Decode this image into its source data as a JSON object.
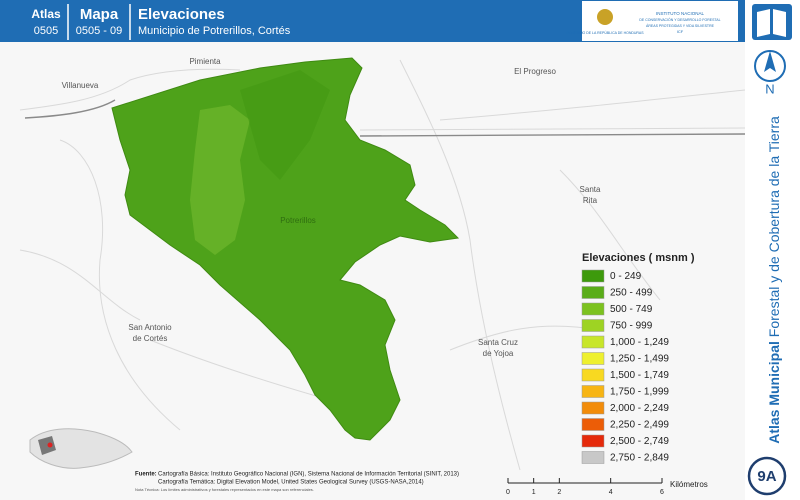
{
  "header": {
    "atlas_label": "Atlas",
    "atlas_code": "0505",
    "map_label": "Mapa",
    "map_code": "0505 - 09",
    "title": "Elevaciones",
    "subtitle": "Municipio de Potrerillos, Cortés",
    "logo_left": "GOBIERNO DE LA REPÚBLICA DE HONDURAS",
    "logo_right": [
      "INSTITUTO NACIONAL",
      "DE CONSERVACIÓN Y DESARROLLO FORESTAL",
      "ÁREAS PROTEGIDAS Y VIDA SILVESTRE",
      "ICF"
    ]
  },
  "places": {
    "pimienta": "Pimienta",
    "villanueva": "Villanueva",
    "el_progreso": "El Progreso",
    "santa_rita": [
      "Santa",
      "Rita"
    ],
    "potrerillos": "Potrerillos",
    "san_antonio": [
      "San Antonio",
      "de Cortés"
    ],
    "santa_cruz": [
      "Santa Cruz",
      "de Yojoa"
    ]
  },
  "legend": {
    "title": "Elevaciones ( msnm )",
    "items": [
      {
        "label": "0 - 249",
        "color": "#3d9a0c"
      },
      {
        "label": "250 - 499",
        "color": "#5aad19"
      },
      {
        "label": "500 - 749",
        "color": "#7cc21f"
      },
      {
        "label": "750 - 999",
        "color": "#9ed323"
      },
      {
        "label": "1,000 - 1,249",
        "color": "#c8e62a"
      },
      {
        "label": "1,250 - 1,499",
        "color": "#eef02e"
      },
      {
        "label": "1,500 - 1,749",
        "color": "#f8d921"
      },
      {
        "label": "1,750 - 1,999",
        "color": "#f7b514"
      },
      {
        "label": "2,000 - 2,249",
        "color": "#f28c0a"
      },
      {
        "label": "2,250 - 2,499",
        "color": "#ec5d07"
      },
      {
        "label": "2,500 - 2,749",
        "color": "#e52a0b"
      },
      {
        "label": "2,750 - 2,849",
        "color": "#c8c8c8"
      }
    ]
  },
  "sidebar": {
    "north": "N",
    "title_bold": "Atlas Municipal",
    "title_rest": "Forestal y de Cobertura de la Tierra",
    "badge": "9A"
  },
  "source": {
    "label": "Fuente:",
    "line1": "Cartografía Básica: Instituto Geográfico Nacional (IGN), Sistema Nacional de Información Territorial (SINIT, 2013)",
    "line2": "Cartografía Temática: Digital Elevation Model, United States Geological Survey (USGS-NASA,2014)",
    "note": "Nota Técnica: Los límites administrativos y forestales representados en este mapa son referenciales."
  },
  "scale": {
    "ticks": [
      0,
      1,
      2,
      4,
      6
    ],
    "unit": "Kilómetros"
  }
}
